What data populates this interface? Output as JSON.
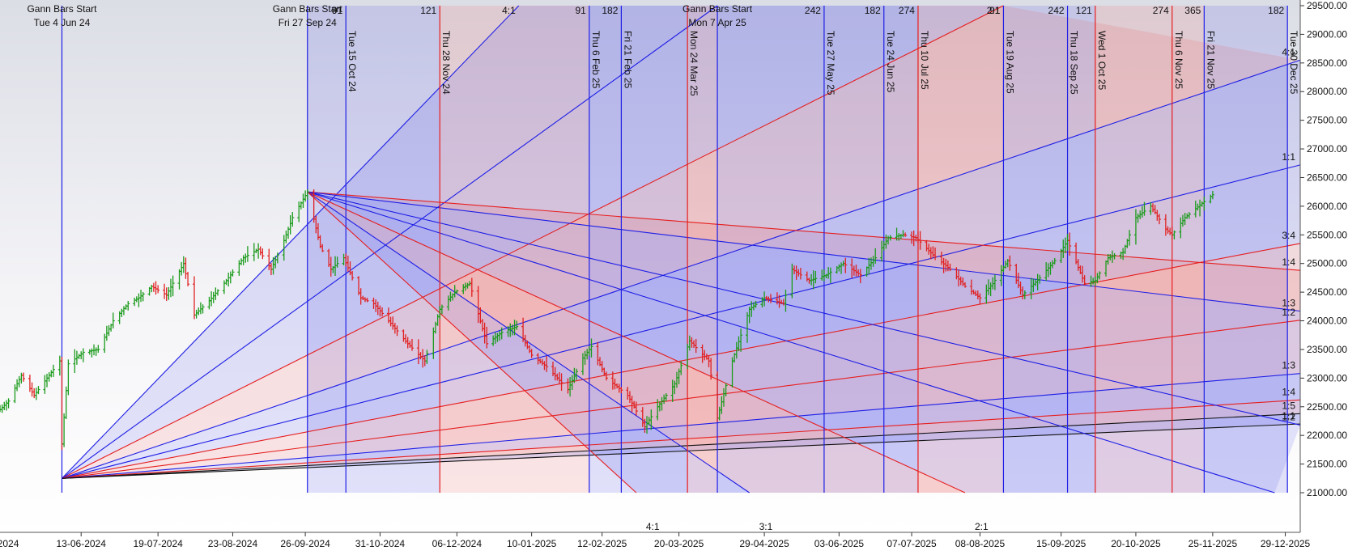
{
  "chart_data": {
    "type": "line",
    "title": "",
    "x_range": [
      "2024-05-06",
      "2026-01-05"
    ],
    "y_range": [
      21000,
      29500
    ],
    "y_ticks": [
      "21000.00",
      "21500.00",
      "22000.00",
      "22500.00",
      "23000.00",
      "23500.00",
      "24000.00",
      "24500.00",
      "25000.00",
      "25500.00",
      "26000.00",
      "26500.00",
      "27000.00",
      "27500.00",
      "28000.00",
      "28500.00",
      "29000.00",
      "29500.00"
    ],
    "x_ticks": [
      {
        "date": "2024-05-05",
        "label": "2024"
      },
      {
        "date": "2024-06-13",
        "label": "13-06-2024"
      },
      {
        "date": "2024-07-19",
        "label": "19-07-2024"
      },
      {
        "date": "2024-08-23",
        "label": "23-08-2024"
      },
      {
        "date": "2024-09-26",
        "label": "26-09-2024"
      },
      {
        "date": "2024-10-31",
        "label": "31-10-2024"
      },
      {
        "date": "2024-12-06",
        "label": "06-12-2024"
      },
      {
        "date": "2025-01-10",
        "label": "10-01-2025"
      },
      {
        "date": "2025-02-12",
        "label": "12-02-2025"
      },
      {
        "date": "2025-03-20",
        "label": "20-03-2025"
      },
      {
        "date": "2025-04-29",
        "label": "29-04-2025"
      },
      {
        "date": "2025-06-03",
        "label": "03-06-2025"
      },
      {
        "date": "2025-07-07",
        "label": "07-07-2025"
      },
      {
        "date": "2025-08-08",
        "label": "08-08-2025"
      },
      {
        "date": "2025-09-15",
        "label": "15-09-2025"
      },
      {
        "date": "2025-10-20",
        "label": "20-10-2025"
      },
      {
        "date": "2025-11-25",
        "label": "25-11-2025"
      },
      {
        "date": "2025-12-29",
        "label": "29-12-2025"
      }
    ],
    "colors": {
      "blue": "#1e1ee6",
      "red": "#e61e1e",
      "up_bar": "#1a9a1a",
      "down_bar": "#e02020",
      "black": "#111111"
    },
    "price_keypoints": [
      [
        "2024-05-06",
        22450
      ],
      [
        "2024-05-10",
        22600
      ],
      [
        "2024-05-16",
        23050
      ],
      [
        "2024-05-22",
        22700
      ],
      [
        "2024-05-27",
        22950
      ],
      [
        "2024-06-03",
        23300
      ],
      [
        "2024-06-04",
        21850
      ],
      [
        "2024-06-07",
        23250
      ],
      [
        "2024-06-14",
        23450
      ],
      [
        "2024-06-21",
        23500
      ],
      [
        "2024-06-28",
        24000
      ],
      [
        "2024-07-05",
        24300
      ],
      [
        "2024-07-10",
        24400
      ],
      [
        "2024-07-16",
        24600
      ],
      [
        "2024-07-23",
        24450
      ],
      [
        "2024-07-31",
        25000
      ],
      [
        "2024-08-05",
        24100
      ],
      [
        "2024-08-12",
        24350
      ],
      [
        "2024-08-20",
        24700
      ],
      [
        "2024-08-28",
        25100
      ],
      [
        "2024-09-04",
        25250
      ],
      [
        "2024-09-10",
        24900
      ],
      [
        "2024-09-16",
        25400
      ],
      [
        "2024-09-20",
        25800
      ],
      [
        "2024-09-27",
        26250
      ],
      [
        "2024-10-03",
        25300
      ],
      [
        "2024-10-08",
        24900
      ],
      [
        "2024-10-14",
        25100
      ],
      [
        "2024-10-22",
        24400
      ],
      [
        "2024-10-28",
        24300
      ],
      [
        "2024-11-04",
        24000
      ],
      [
        "2024-11-13",
        23600
      ],
      [
        "2024-11-21",
        23300
      ],
      [
        "2024-11-28",
        24200
      ],
      [
        "2024-12-05",
        24500
      ],
      [
        "2024-12-12",
        24650
      ],
      [
        "2024-12-20",
        23600
      ],
      [
        "2024-12-27",
        23800
      ],
      [
        "2025-01-03",
        23900
      ],
      [
        "2025-01-10",
        23400
      ],
      [
        "2025-01-17",
        23200
      ],
      [
        "2025-01-27",
        22800
      ],
      [
        "2025-02-03",
        23350
      ],
      [
        "2025-02-07",
        23550
      ],
      [
        "2025-02-14",
        23000
      ],
      [
        "2025-02-24",
        22700
      ],
      [
        "2025-03-04",
        22150
      ],
      [
        "2025-03-10",
        22500
      ],
      [
        "2025-03-18",
        22900
      ],
      [
        "2025-03-25",
        23650
      ],
      [
        "2025-04-03",
        23300
      ],
      [
        "2025-04-07",
        22300
      ],
      [
        "2025-04-14",
        23300
      ],
      [
        "2025-04-22",
        24200
      ],
      [
        "2025-04-29",
        24400
      ],
      [
        "2025-05-08",
        24300
      ],
      [
        "2025-05-12",
        24900
      ],
      [
        "2025-05-20",
        24700
      ],
      [
        "2025-05-28",
        24800
      ],
      [
        "2025-06-05",
        25000
      ],
      [
        "2025-06-13",
        24800
      ],
      [
        "2025-06-20",
        25100
      ],
      [
        "2025-06-26",
        25450
      ],
      [
        "2025-07-03",
        25500
      ],
      [
        "2025-07-09",
        25450
      ],
      [
        "2025-07-17",
        25150
      ],
      [
        "2025-07-25",
        24900
      ],
      [
        "2025-08-01",
        24600
      ],
      [
        "2025-08-08",
        24400
      ],
      [
        "2025-08-14",
        24650
      ],
      [
        "2025-08-21",
        25050
      ],
      [
        "2025-08-28",
        24450
      ],
      [
        "2025-09-05",
        24750
      ],
      [
        "2025-09-12",
        25050
      ],
      [
        "2025-09-18",
        25400
      ],
      [
        "2025-09-26",
        24650
      ],
      [
        "2025-10-01",
        24700
      ],
      [
        "2025-10-07",
        25100
      ],
      [
        "2025-10-14",
        25200
      ],
      [
        "2025-10-20",
        25800
      ],
      [
        "2025-10-27",
        26000
      ],
      [
        "2025-11-03",
        25600
      ],
      [
        "2025-11-06",
        25500
      ],
      [
        "2025-11-12",
        25800
      ],
      [
        "2025-11-20",
        26050
      ],
      [
        "2025-11-25",
        26200
      ]
    ],
    "vertical_markers": [
      {
        "date": "2024-06-04",
        "color": "blue",
        "label": "Tue 4 Jun 24",
        "header": "Gann Bars Start",
        "top": "",
        "bottom": ""
      },
      {
        "date": "2024-09-27",
        "color": "blue",
        "label": "Fri 27 Sep 24",
        "header": "Gann Bars Start",
        "top": "",
        "bottom": ""
      },
      {
        "date": "2024-10-15",
        "color": "blue",
        "label": "Tue 15 Oct 24",
        "top": "91",
        "bottom": ""
      },
      {
        "date": "2024-11-28",
        "color": "red",
        "label": "Thu 28 Nov 24",
        "top": "121",
        "bottom": ""
      },
      {
        "date": "2025-02-06",
        "color": "blue",
        "label": "Thu 6 Feb 25",
        "top": "91",
        "bottom": ""
      },
      {
        "date": "2025-02-21",
        "color": "blue",
        "label": "Fri 21 Feb 25",
        "top": "182",
        "bottom": ""
      },
      {
        "date": "2025-03-24",
        "color": "red",
        "label": "Mon 24 Mar 25",
        "top": "",
        "bottom": ""
      },
      {
        "date": "2025-04-07",
        "color": "blue",
        "label": "Mon 7 Apr 25",
        "header": "Gann Bars Start",
        "top": "",
        "bottom": ""
      },
      {
        "date": "2025-05-27",
        "color": "blue",
        "label": "Tue 27 May 25",
        "top": "242",
        "bottom": ""
      },
      {
        "date": "2025-06-24",
        "color": "blue",
        "label": "Tue 24 Jun 25",
        "top": "182",
        "bottom": ""
      },
      {
        "date": "2025-07-10",
        "color": "red",
        "label": "Thu 10 Jul 25",
        "top": "274",
        "bottom": ""
      },
      {
        "date": "2025-08-19",
        "color": "blue",
        "label": "Tue 19 Aug 25",
        "top": "91",
        "bottom": ""
      },
      {
        "date": "2025-09-18",
        "color": "blue",
        "label": "Thu 18 Sep 25",
        "top": "242",
        "bottom": ""
      },
      {
        "date": "2025-10-01",
        "color": "red",
        "label": "Wed 1 Oct 25",
        "top": "121",
        "bottom": ""
      },
      {
        "date": "2025-11-06",
        "color": "red",
        "label": "Thu 6 Nov 25",
        "top": "274",
        "bottom": ""
      },
      {
        "date": "2025-11-21",
        "color": "blue",
        "label": "Fri 21 Nov 25",
        "top": "365",
        "bottom": ""
      },
      {
        "date": "2025-12-30",
        "color": "blue",
        "label": "Tue 30 Dec 25",
        "top": "182",
        "bottom": ""
      }
    ],
    "top_extra_labels": [
      {
        "date": "2024-10-15",
        "text": "91"
      },
      {
        "date": "2025-01-04",
        "text": "4:1"
      },
      {
        "date": "2025-08-19",
        "text": "2:1"
      }
    ],
    "bottom_labels": [
      {
        "date": "2025-02-28",
        "text": "4:1"
      },
      {
        "date": "2025-04-22",
        "text": "3:1"
      },
      {
        "date": "2025-08-01",
        "text": "2:1"
      }
    ],
    "fan_from_low": {
      "origin": [
        "2024-06-04",
        21250
      ],
      "rays": [
        {
          "end": [
            "2025-01-04",
            29500
          ],
          "color": "blue"
        },
        {
          "end": [
            "2025-04-07",
            29500
          ],
          "color": "blue"
        },
        {
          "end": [
            "2025-08-19",
            29500
          ],
          "color": "red"
        },
        {
          "end": [
            "2026-01-05",
            28550
          ],
          "color": "blue",
          "label": "4:1"
        },
        {
          "end": [
            "2026-01-05",
            26720
          ],
          "color": "blue",
          "label": "1:1"
        },
        {
          "end": [
            "2026-01-05",
            25350
          ],
          "color": "red",
          "label": "3:4"
        },
        {
          "end": [
            "2026-01-05",
            24010
          ],
          "color": "red",
          "label": "1:2"
        },
        {
          "end": [
            "2026-01-05",
            23080
          ],
          "color": "blue",
          "label": "1:3"
        },
        {
          "end": [
            "2026-01-05",
            22620
          ],
          "color": "red",
          "label": "1:4"
        },
        {
          "end": [
            "2026-01-05",
            22380
          ],
          "color": "black",
          "label": "1:5"
        },
        {
          "end": [
            "2026-01-05",
            22200
          ],
          "color": "black",
          "label": "1:1"
        }
      ]
    },
    "fan_from_high": {
      "origin": [
        "2024-09-27",
        26250
      ],
      "rays": [
        {
          "end": [
            "2026-01-05",
            24880
          ],
          "color": "red",
          "label": "1:4"
        },
        {
          "end": [
            "2026-01-05",
            24170
          ],
          "color": "blue",
          "label": "1:3"
        },
        {
          "end": [
            "2026-01-05",
            22180
          ],
          "color": "blue",
          "label": "1:2"
        },
        {
          "end": [
            "2025-12-24",
            21000
          ],
          "color": "blue"
        },
        {
          "end": [
            "2025-08-01",
            21000
          ],
          "color": "red",
          "label": "2:1"
        },
        {
          "end": [
            "2025-04-22",
            21000
          ],
          "color": "blue",
          "label": "3:1"
        },
        {
          "end": [
            "2025-02-28",
            21000
          ],
          "color": "red",
          "label": "4:1"
        }
      ]
    },
    "fan_right_labels": [
      "4:1",
      "1:1",
      "3:4",
      "1:4",
      "1:3",
      "1:2",
      "1:3",
      "1:4",
      "1:5",
      "1:1",
      "1:2"
    ]
  }
}
